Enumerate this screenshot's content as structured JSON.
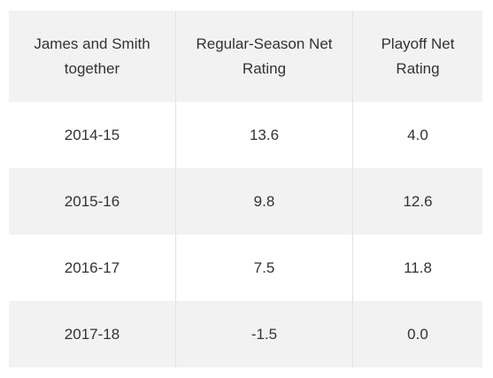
{
  "table": {
    "headers": [
      "James and Smith together",
      "Regular-Season Net Rating",
      "Playoff Net Rating"
    ],
    "rows": [
      [
        "2014-15",
        "13.6",
        "4.0"
      ],
      [
        "2015-16",
        "9.8",
        "12.6"
      ],
      [
        "2016-17",
        "7.5",
        "11.8"
      ],
      [
        "2017-18",
        "-1.5",
        "0.0"
      ]
    ]
  }
}
